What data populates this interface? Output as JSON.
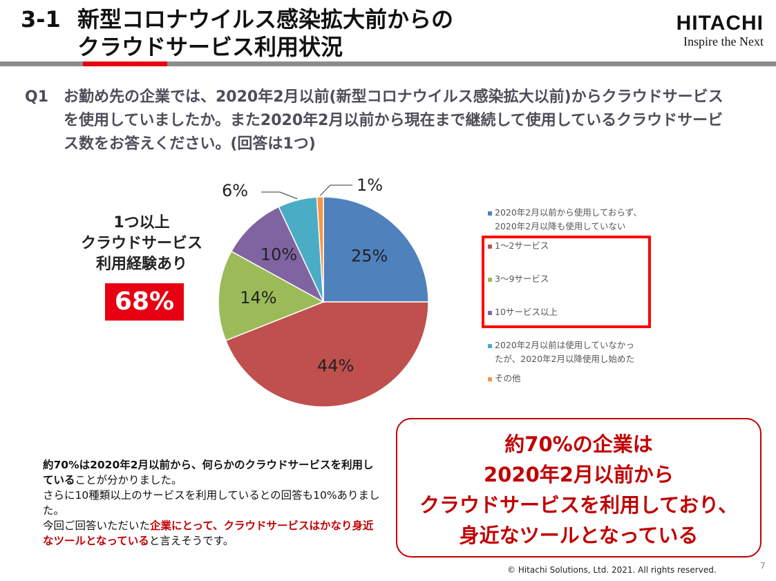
{
  "header": {
    "section": "3-1",
    "title_line1": "新型コロナウイルス感染拡大前からの",
    "title_line2": "クラウドサービス利用状況",
    "logo_brand": "HITACHI",
    "logo_tagline": "Inspire the Next"
  },
  "question": {
    "label": "Q1",
    "text": "お勤め先の企業では、2020年2月以前(新型コロナウイルス感染拡大以前)からクラウドサービスを使用していましたか。また2020年2月以前から現在まで継続して使用しているクラウドサービス数をお答えください。(回答は1つ)"
  },
  "experience": {
    "line1": "1つ以上",
    "line2": "クラウドサービス",
    "line3": "利用経験あり",
    "value": "68%"
  },
  "chart_data": {
    "type": "pie",
    "start": "top",
    "direction": "clockwise",
    "categories": [
      "2020年2月以前から使用しておらず、2020年2月以降も使用していない",
      "1～2サービス",
      "3～9サービス",
      "10サービス以上",
      "2020年2月以前は使用していなかったが、2020年2月以降使用し始めた",
      "その他"
    ],
    "legend_lines": [
      [
        "2020年2月以前から使用しておらず、",
        "2020年2月以降も使用していない"
      ],
      [
        "1～2サービス"
      ],
      [
        "3～9サービス"
      ],
      [
        "10サービス以上"
      ],
      [
        "2020年2月以前は使用していなかっ",
        "たが、2020年2月以降使用し始めた"
      ],
      [
        "その他"
      ]
    ],
    "values": [
      25,
      44,
      14,
      10,
      6,
      1
    ],
    "labels": [
      "25%",
      "44%",
      "14%",
      "10%",
      "6%",
      "1%"
    ],
    "colors": [
      "#4f81bd",
      "#c0504d",
      "#9bbb59",
      "#8064a2",
      "#4bacc6",
      "#f79646"
    ],
    "legend_placement": "right",
    "highlighted_categories": [
      "1～2サービス",
      "3～9サービス",
      "10サービス以上"
    ],
    "highlight_color": "#ff0000"
  },
  "note": {
    "p1_bold": "約70%は2020年2月以前から、何らかのクラウドサービスを利用している",
    "p1_rest": "ことが分かりました。",
    "p2": "さらに10種類以上のサービスを利用しているとの回答も10%ありました。",
    "p3_start": "今回ご回答いただいた",
    "p3_red": "企業にとって、クラウドサービスはかなり身近なツールとなっている",
    "p3_end": "と言えそうです。"
  },
  "callout": {
    "line1": "約70%の企業は",
    "line2": "2020年2月以前から",
    "line3": "クラウドサービスを利用しており、",
    "line4": "身近なツールとなっている",
    "color": "#c00000"
  },
  "footer": {
    "copyright": "© Hitachi Solutions, Ltd. 2021. All rights reserved.",
    "page": "7"
  }
}
